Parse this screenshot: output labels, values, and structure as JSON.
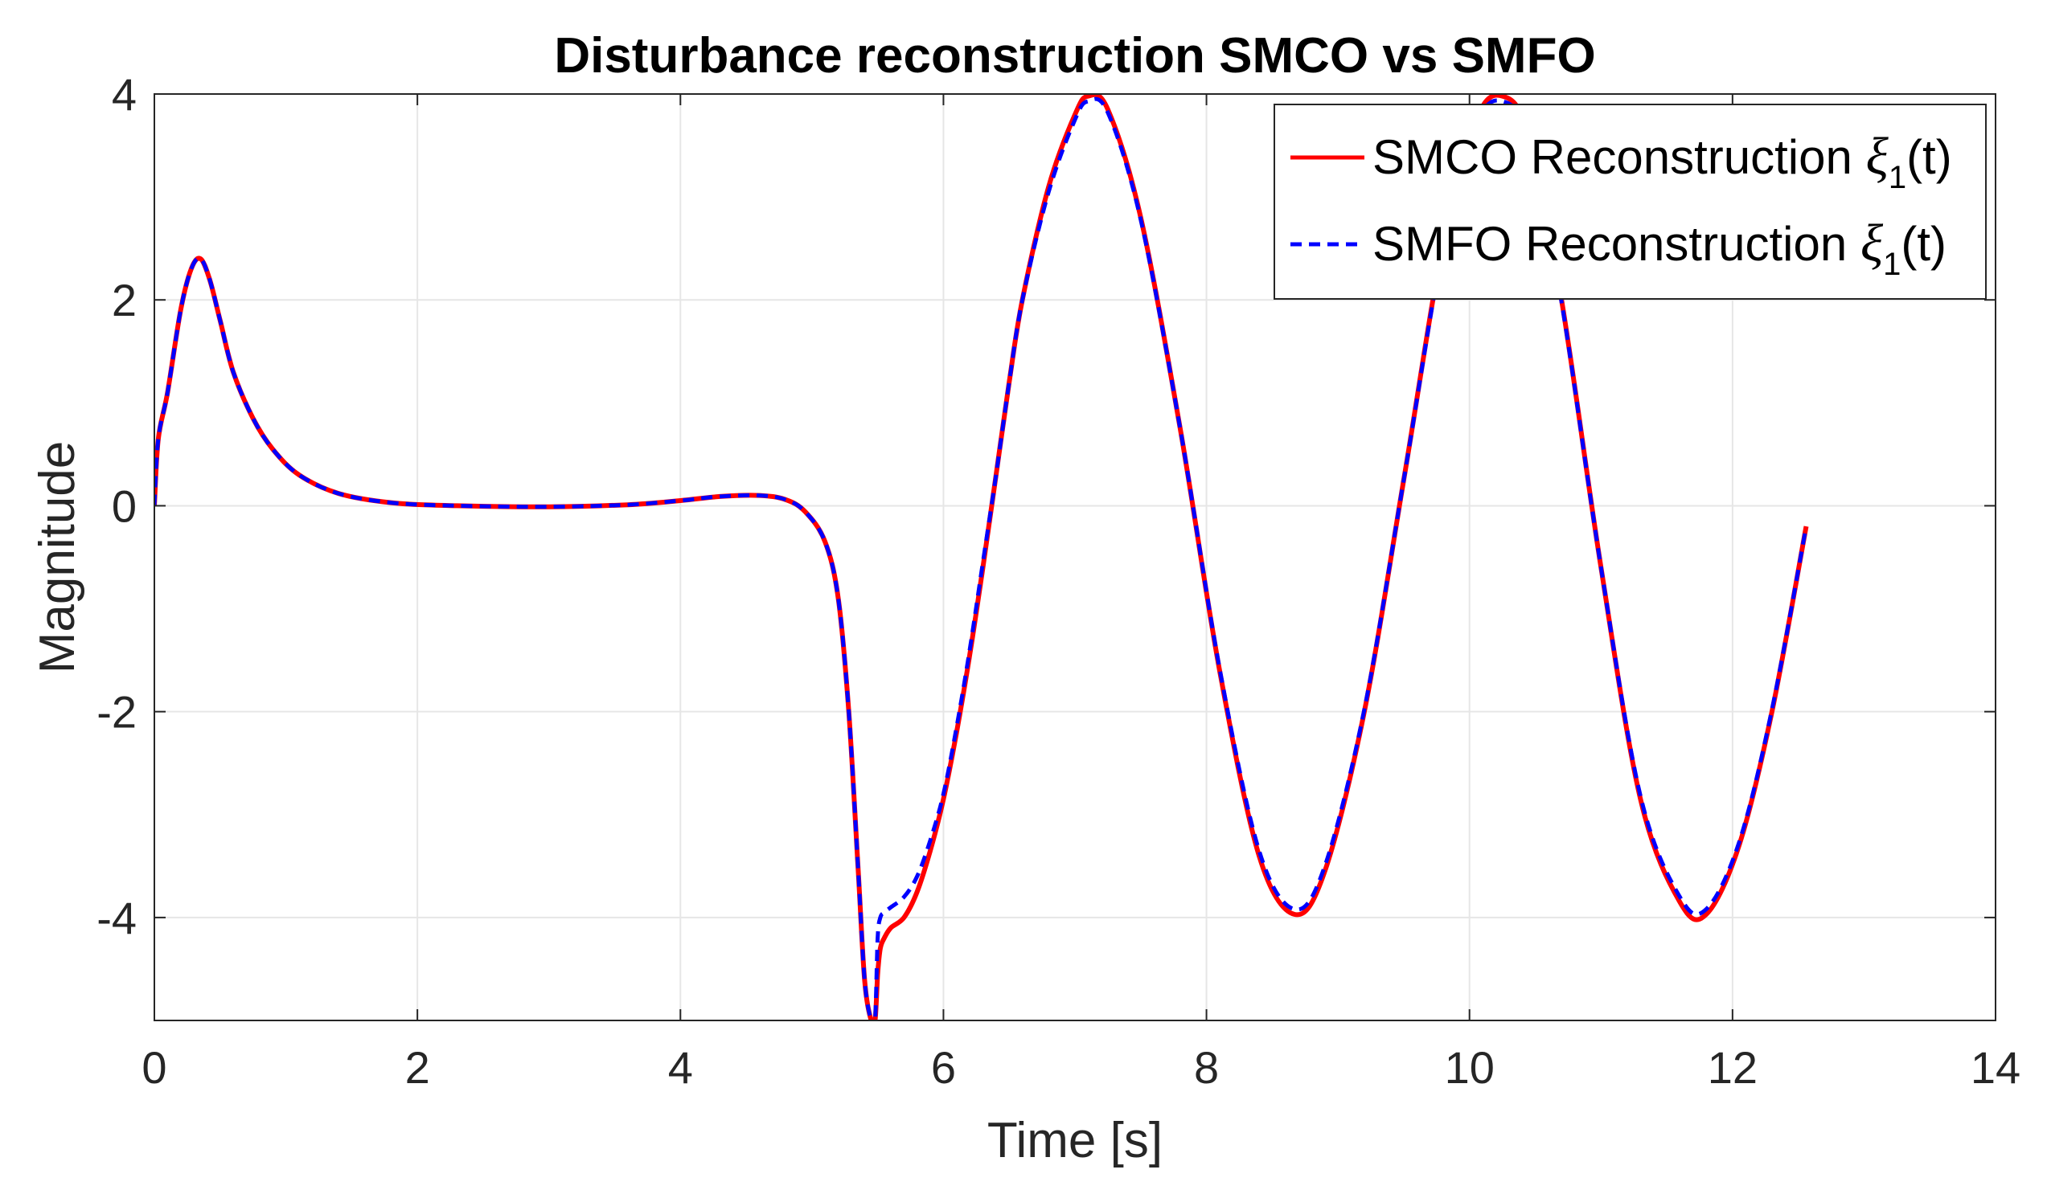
{
  "chart_data": {
    "type": "line",
    "title": "Disturbance reconstruction SMCO vs SMFO",
    "xlabel": "Time [s]",
    "ylabel": "Magnitude",
    "xlim": [
      0,
      14
    ],
    "ylim": [
      -5,
      4
    ],
    "xticks": [
      0,
      2,
      4,
      6,
      8,
      10,
      12,
      14
    ],
    "yticks": [
      -4,
      -2,
      0,
      2,
      4
    ],
    "xtick_labels": [
      "0",
      "2",
      "4",
      "6",
      "8",
      "10",
      "12",
      "14"
    ],
    "ytick_labels": [
      "-4",
      "-2",
      "0",
      "2",
      "4"
    ],
    "grid": true,
    "legend_position": "top-right",
    "series": [
      {
        "name": "SMCO Reconstruction ξ1(t)",
        "legend_main": "SMCO Reconstruction ",
        "legend_symbol": "ξ",
        "legend_sub": "1",
        "legend_tail": "(t)",
        "color": "#ff0000",
        "style": "solid",
        "x": [
          0,
          0.03,
          0.1,
          0.2,
          0.28,
          0.35,
          0.42,
          0.5,
          0.6,
          0.75,
          0.9,
          1.1,
          1.4,
          1.8,
          2.3,
          3.0,
          3.6,
          4.0,
          4.3,
          4.6,
          4.8,
          4.95,
          5.1,
          5.2,
          5.28,
          5.35,
          5.4,
          5.45,
          5.48,
          5.5,
          5.52,
          5.55,
          5.6,
          5.7,
          5.8,
          5.9,
          6.0,
          6.1,
          6.2,
          6.3,
          6.4,
          6.5,
          6.6,
          6.8,
          7.0,
          7.1,
          7.25,
          7.5,
          7.8,
          8.1,
          8.4,
          8.67,
          8.9,
          9.2,
          9.5,
          9.8,
          10.05,
          10.25,
          10.45,
          10.7,
          11.0,
          11.3,
          11.6,
          11.8,
          12.05,
          12.3,
          12.56
        ],
        "y": [
          0,
          0.65,
          1.1,
          1.9,
          2.3,
          2.4,
          2.2,
          1.8,
          1.3,
          0.85,
          0.55,
          0.3,
          0.12,
          0.03,
          0.0,
          -0.01,
          0.01,
          0.05,
          0.09,
          0.1,
          0.06,
          -0.06,
          -0.35,
          -0.9,
          -2.0,
          -3.5,
          -4.6,
          -5.0,
          -5.0,
          -4.55,
          -4.3,
          -4.2,
          -4.1,
          -4.0,
          -3.75,
          -3.35,
          -2.85,
          -2.2,
          -1.45,
          -0.6,
          0.3,
          1.2,
          2.0,
          3.1,
          3.8,
          3.98,
          3.85,
          2.8,
          0.75,
          -1.6,
          -3.4,
          -3.97,
          -3.55,
          -2.0,
          0.25,
          2.55,
          3.75,
          3.98,
          3.6,
          2.0,
          -0.6,
          -2.85,
          -3.85,
          -3.97,
          -3.3,
          -2.0,
          -0.2
        ]
      },
      {
        "name": "SMFO Reconstruction ξ1(t)",
        "legend_main": "SMFO Reconstruction ",
        "legend_symbol": "ξ",
        "legend_sub": "1",
        "legend_tail": "(t)",
        "color": "#0000ff",
        "style": "dashed",
        "x": [
          0,
          0.03,
          0.1,
          0.2,
          0.28,
          0.35,
          0.42,
          0.5,
          0.6,
          0.75,
          0.9,
          1.1,
          1.4,
          1.8,
          2.3,
          3.0,
          3.6,
          4.0,
          4.3,
          4.6,
          4.8,
          4.95,
          5.1,
          5.2,
          5.28,
          5.35,
          5.4,
          5.45,
          5.48,
          5.5,
          5.52,
          5.55,
          5.6,
          5.7,
          5.8,
          5.9,
          6.0,
          6.1,
          6.2,
          6.3,
          6.4,
          6.5,
          6.6,
          6.8,
          7.0,
          7.1,
          7.25,
          7.5,
          7.8,
          8.1,
          8.4,
          8.67,
          8.9,
          9.2,
          9.5,
          9.8,
          10.05,
          10.25,
          10.45,
          10.7,
          11.0,
          11.3,
          11.6,
          11.8,
          12.05,
          12.3,
          12.56
        ],
        "y": [
          0,
          0.65,
          1.1,
          1.9,
          2.3,
          2.4,
          2.2,
          1.8,
          1.3,
          0.85,
          0.55,
          0.3,
          0.12,
          0.03,
          0.0,
          -0.01,
          0.01,
          0.05,
          0.09,
          0.1,
          0.06,
          -0.06,
          -0.35,
          -0.9,
          -2.0,
          -3.5,
          -4.6,
          -5.0,
          -5.0,
          -4.2,
          -4.0,
          -3.95,
          -3.9,
          -3.8,
          -3.6,
          -3.25,
          -2.8,
          -2.15,
          -1.4,
          -0.55,
          0.3,
          1.2,
          2.0,
          3.05,
          3.75,
          3.93,
          3.82,
          2.78,
          0.75,
          -1.58,
          -3.35,
          -3.92,
          -3.5,
          -1.98,
          0.25,
          2.52,
          3.7,
          3.93,
          3.56,
          1.98,
          -0.6,
          -2.82,
          -3.8,
          -3.92,
          -3.27,
          -1.98,
          -0.2
        ]
      }
    ]
  }
}
